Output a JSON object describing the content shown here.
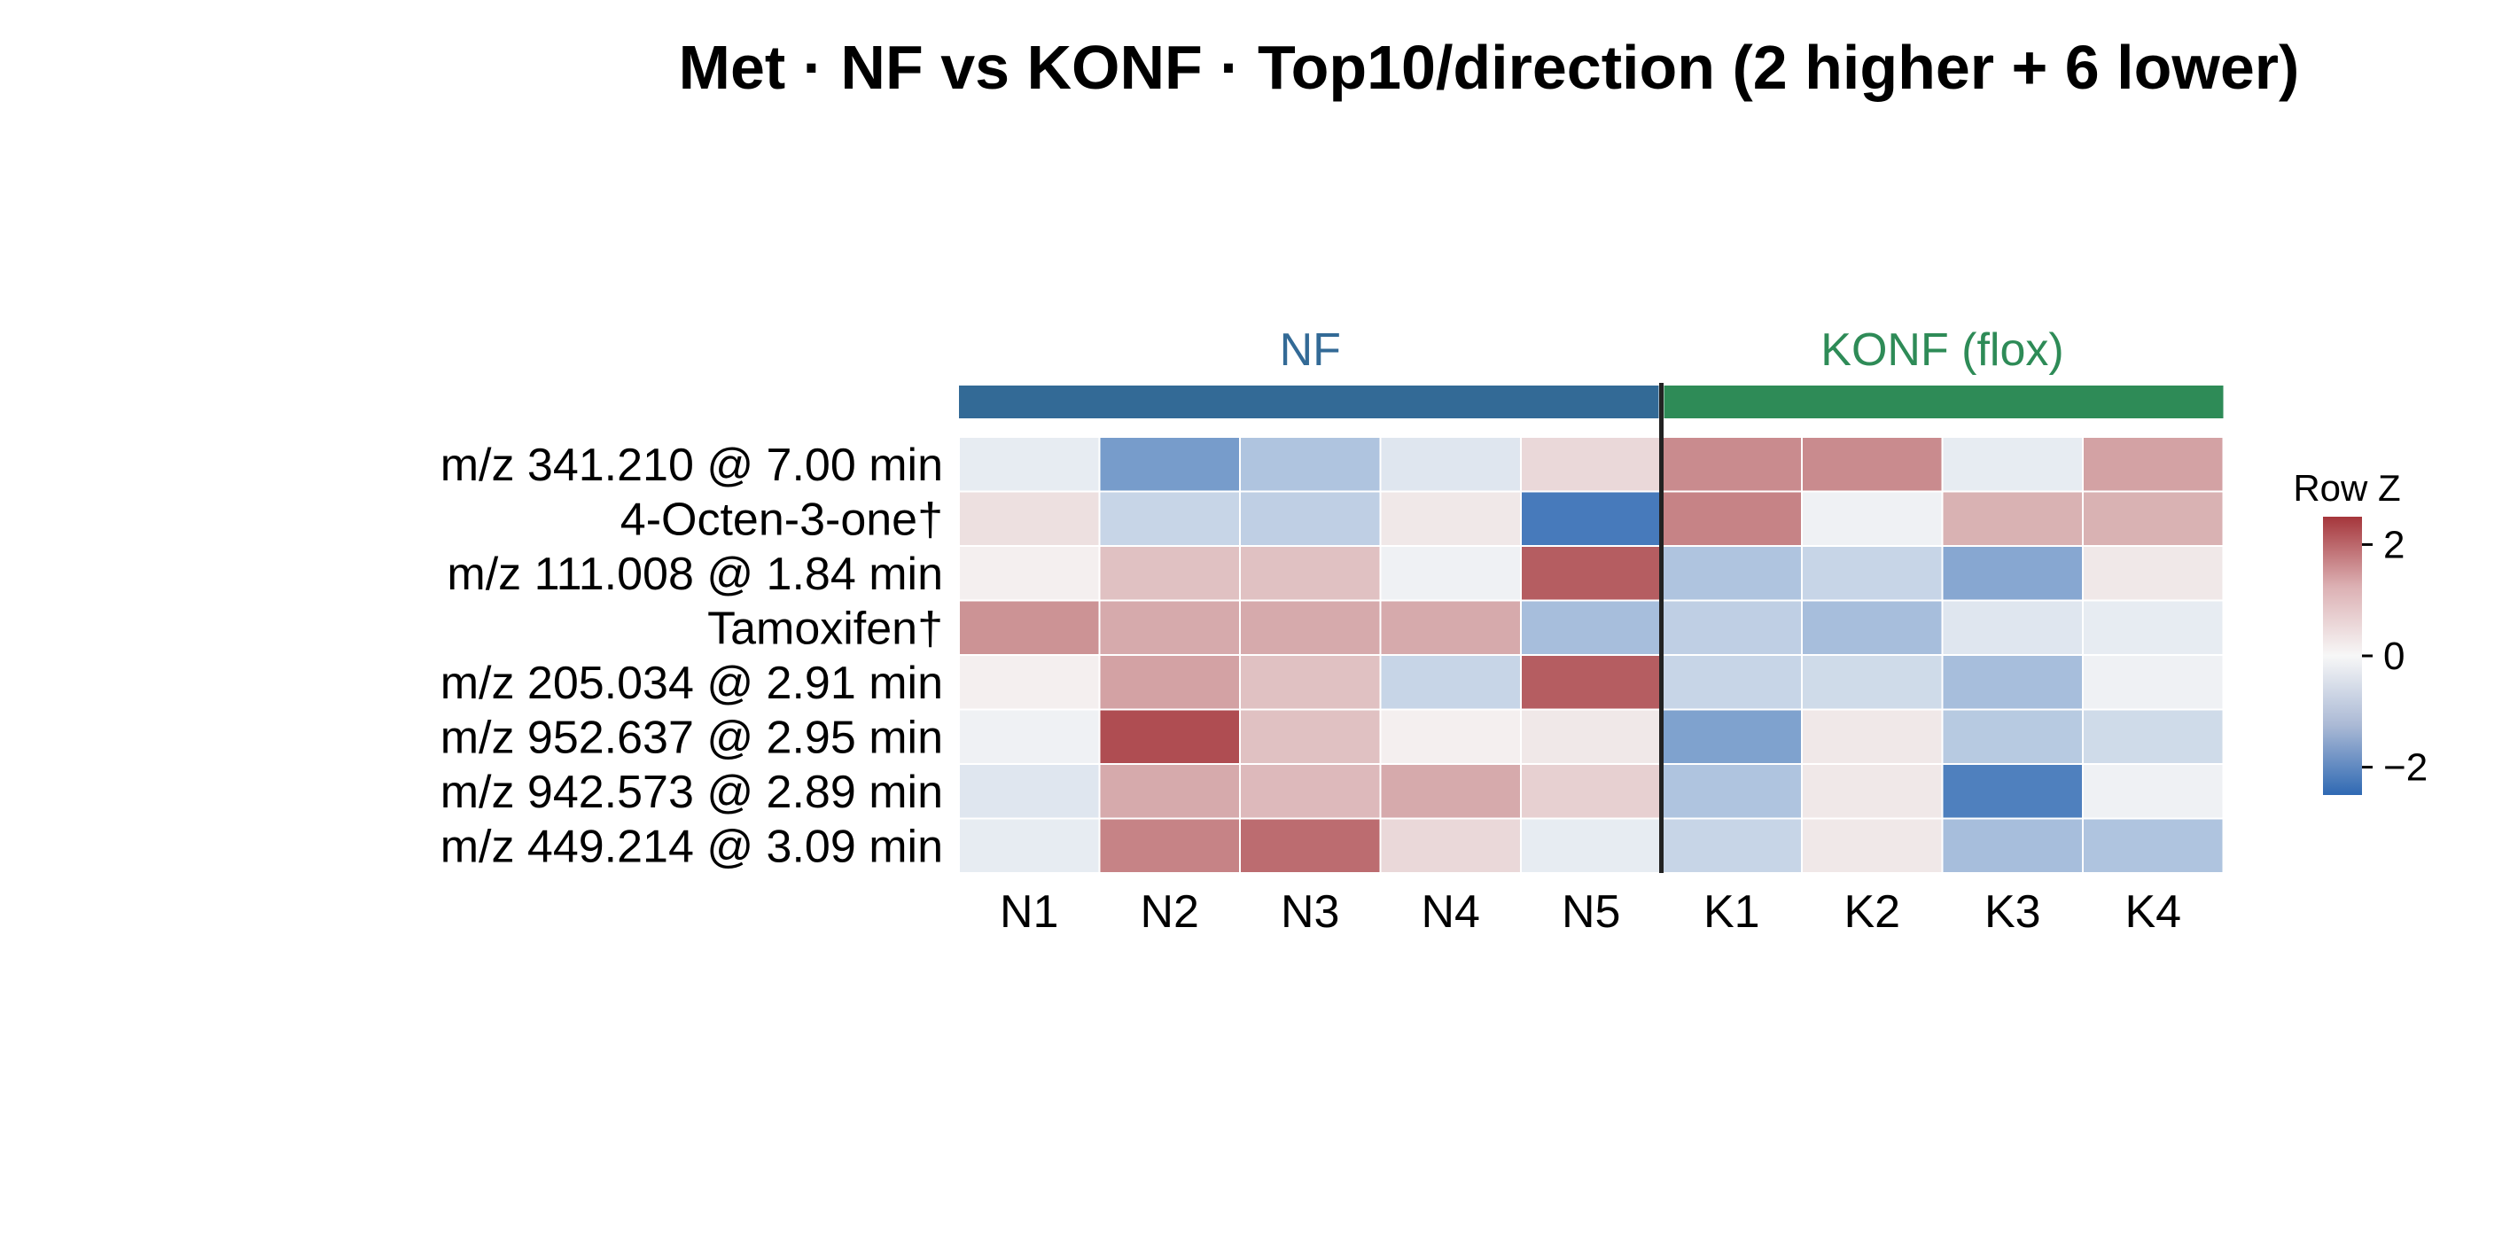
{
  "chart_data": {
    "type": "heatmap",
    "title": "Met · NF vs KONF · Top10/direction (2 higher + 6 lower)",
    "groups": [
      {
        "name": "NF",
        "color": "#336a96",
        "columns": [
          "N1",
          "N2",
          "N3",
          "N4",
          "N5"
        ]
      },
      {
        "name": "KONF (flox)",
        "color": "#2e8b57",
        "columns": [
          "K1",
          "K2",
          "K3",
          "K4"
        ]
      }
    ],
    "columns": [
      "N1",
      "N2",
      "N3",
      "N4",
      "N5",
      "K1",
      "K2",
      "K3",
      "K4"
    ],
    "rows": [
      "m/z 341.210 @ 7.00 min",
      "4-Octen-3-one†",
      "m/z 111.008 @ 1.84 min",
      "Tamoxifen†",
      "m/z 205.034 @ 2.91 min",
      "m/z 952.637 @ 2.95 min",
      "m/z 942.573 @ 2.89 min",
      "m/z 449.214 @ 3.09 min"
    ],
    "values": [
      [
        -0.2,
        -1.6,
        -0.9,
        -0.3,
        0.4,
        1.4,
        1.4,
        -0.2,
        1.1
      ],
      [
        0.3,
        -0.6,
        -0.7,
        0.2,
        -2.2,
        1.5,
        -0.1,
        0.9,
        0.9
      ],
      [
        0.1,
        0.7,
        0.7,
        -0.1,
        2.0,
        -0.9,
        -0.6,
        -1.4,
        0.2
      ],
      [
        1.3,
        1.0,
        1.0,
        1.0,
        -1.0,
        -0.7,
        -1.0,
        -0.3,
        -0.2
      ],
      [
        0.1,
        1.1,
        0.7,
        -0.6,
        2.0,
        -0.6,
        -0.5,
        -1.0,
        -0.1
      ],
      [
        -0.1,
        2.2,
        0.7,
        0.1,
        0.2,
        -1.5,
        0.2,
        -0.8,
        -0.5
      ],
      [
        -0.3,
        1.0,
        0.8,
        1.0,
        0.5,
        -0.9,
        0.2,
        -2.1,
        -0.1
      ],
      [
        -0.2,
        1.5,
        1.8,
        0.4,
        -0.2,
        -0.6,
        0.2,
        -1.0,
        -0.9
      ]
    ],
    "colorbar": {
      "title": "Row Z",
      "ticks": [
        2,
        0,
        -2
      ],
      "range": [
        -2.5,
        2.5
      ],
      "colors": {
        "low": "#2f69b3",
        "mid": "#f7f7f7",
        "high": "#a5363b"
      }
    },
    "separator_after_column": "N5"
  }
}
